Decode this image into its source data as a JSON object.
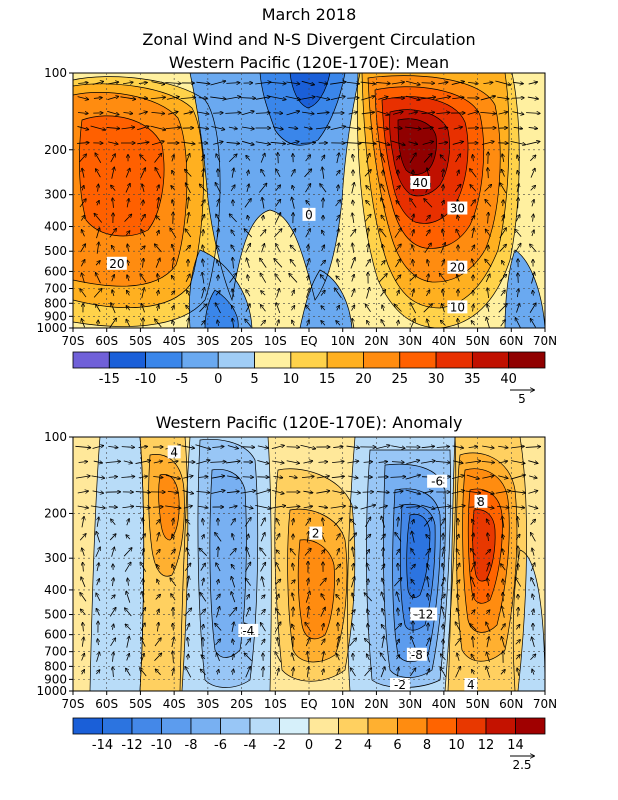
{
  "titles": {
    "line1": "March 2018",
    "line2": "Zonal Wind and N-S Divergent Circulation",
    "line3": "Western Pacific (120E-170E): Mean",
    "line4": "Western Pacific (120E-170E): Anomaly"
  },
  "chart_data": [
    {
      "type": "heatmap",
      "title": "Western Pacific (120E-170E): Mean",
      "x_ticks": [
        "70S",
        "60S",
        "50S",
        "40S",
        "30S",
        "20S",
        "10S",
        "EQ",
        "10N",
        "20N",
        "30N",
        "40N",
        "50N",
        "60N",
        "70N"
      ],
      "y_ticks": [
        "100",
        "200",
        "300",
        "400",
        "500",
        "600",
        "700",
        "800",
        "900",
        "1000"
      ],
      "y_scale": "log-pressure",
      "xlim": [
        -70,
        70
      ],
      "ylim": [
        1000,
        100
      ],
      "colorbar": {
        "levels": [
          "-15",
          "-10",
          "-5",
          "0",
          "5",
          "10",
          "15",
          "20",
          "25",
          "30",
          "35",
          "40"
        ],
        "colors": [
          "#7060d8",
          "#1a5fd8",
          "#3a86ea",
          "#6aa9f0",
          "#a0cdf6",
          "#fff0a0",
          "#ffd24a",
          "#ffb020",
          "#ff8c10",
          "#ff6000",
          "#e83000",
          "#c01000",
          "#900000"
        ]
      },
      "vector_ref": "5",
      "contour_labels": [
        {
          "text": "40",
          "x": 33,
          "p": 270
        },
        {
          "text": "30",
          "x": 44,
          "p": 340
        },
        {
          "text": "20",
          "x": 44,
          "p": 580
        },
        {
          "text": "10",
          "x": 44,
          "p": 830
        },
        {
          "text": "20",
          "x": -57,
          "p": 560
        },
        {
          "text": "0",
          "x": 0,
          "p": 360
        }
      ]
    },
    {
      "type": "heatmap",
      "title": "Western Pacific (120E-170E): Anomaly",
      "x_ticks": [
        "70S",
        "60S",
        "50S",
        "40S",
        "30S",
        "20S",
        "10S",
        "EQ",
        "10N",
        "20N",
        "30N",
        "40N",
        "50N",
        "60N",
        "70N"
      ],
      "y_ticks": [
        "100",
        "200",
        "300",
        "400",
        "500",
        "600",
        "700",
        "800",
        "900",
        "1000"
      ],
      "y_scale": "log-pressure",
      "xlim": [
        -70,
        70
      ],
      "ylim": [
        1000,
        100
      ],
      "colorbar": {
        "levels": [
          "-14",
          "-12",
          "-10",
          "-8",
          "-6",
          "-4",
          "-2",
          "0",
          "2",
          "4",
          "6",
          "8",
          "10",
          "12",
          "14"
        ],
        "colors": [
          "#1a5fd8",
          "#2c74e0",
          "#4488e8",
          "#5c9cee",
          "#78b0f2",
          "#98c6f6",
          "#b8dcf8",
          "#d6f0fa",
          "#ffe89a",
          "#ffd060",
          "#ffb030",
          "#ff8c10",
          "#ff6400",
          "#e83800",
          "#c41200",
          "#a00000"
        ]
      },
      "vector_ref": "2.5",
      "contour_labels": [
        {
          "text": "4",
          "x": -40,
          "p": 115
        },
        {
          "text": "-6",
          "x": 38,
          "p": 150
        },
        {
          "text": "8",
          "x": 51,
          "p": 180
        },
        {
          "text": "2",
          "x": 2,
          "p": 240
        },
        {
          "text": "-4",
          "x": -18,
          "p": 580
        },
        {
          "text": "-12",
          "x": 34,
          "p": 500
        },
        {
          "text": "-8",
          "x": 32,
          "p": 720
        },
        {
          "text": "-2",
          "x": 27,
          "p": 1000
        },
        {
          "text": "4",
          "x": 48,
          "p": 1000
        }
      ]
    }
  ]
}
